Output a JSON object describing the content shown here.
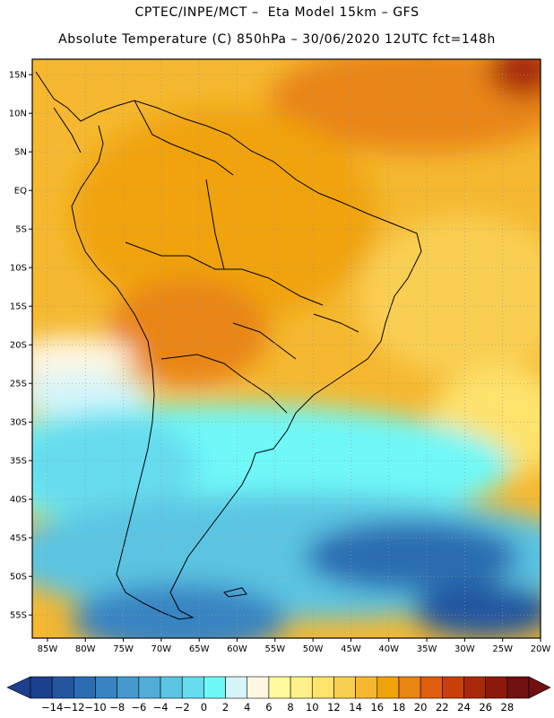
{
  "header": {
    "line1": "CPTEC/INPE/MCT –  Eta Model 15km – GFS",
    "line2": "Absolute Temperature (C) 850hPa – 30/06/2020 12UTC fct=148h"
  },
  "map": {
    "lon_range": [
      -87,
      -20
    ],
    "lat_range": [
      -58,
      17
    ],
    "lon_ticks": [
      "85W",
      "80W",
      "75W",
      "70W",
      "65W",
      "60W",
      "55W",
      "50W",
      "45W",
      "40W",
      "35W",
      "30W",
      "25W",
      "20W"
    ],
    "lat_ticks": [
      "15N",
      "10N",
      "5N",
      "EQ",
      "5S",
      "10S",
      "15S",
      "20S",
      "25S",
      "30S",
      "35S",
      "40S",
      "45S",
      "50S",
      "55S"
    ],
    "grid": "dotted"
  },
  "colorbar": {
    "labels": [
      "-14",
      "-12",
      "-10",
      "-8",
      "-6",
      "-4",
      "-2",
      "0",
      "2",
      "4",
      "6",
      "8",
      "10",
      "12",
      "14",
      "16",
      "18",
      "20",
      "22",
      "24",
      "26",
      "28"
    ],
    "colors": [
      "#1c3f8e",
      "#2456a0",
      "#2c6db2",
      "#3884c2",
      "#4699cc",
      "#52add6",
      "#5cc4e2",
      "#66dcee",
      "#6ff8f8",
      "#d6f5fb",
      "#fff7e2",
      "#fffb9c",
      "#fef08a",
      "#fde26c",
      "#f9cf52",
      "#f5b830",
      "#f0a30c",
      "#e98513",
      "#dd5e0c",
      "#c7400c",
      "#a82a0c",
      "#8c1a0c",
      "#701010"
    ]
  }
}
